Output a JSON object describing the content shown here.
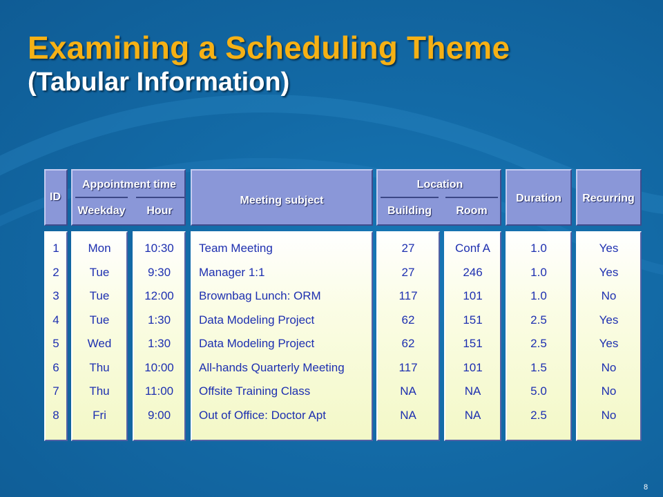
{
  "slide": {
    "title": "Examining a Scheduling Theme",
    "subtitle": "(Tabular Information)",
    "page_number": "8"
  },
  "table": {
    "headers": {
      "id": "ID",
      "appointment_time": "Appointment time",
      "weekday": "Weekday",
      "hour": "Hour",
      "meeting_subject": "Meeting subject",
      "location": "Location",
      "building": "Building",
      "room": "Room",
      "duration": "Duration",
      "recurring": "Recurring"
    },
    "columns": {
      "id": [
        "1",
        "2",
        "3",
        "4",
        "5",
        "6",
        "7",
        "8"
      ],
      "weekday": [
        "Mon",
        "Tue",
        "Tue",
        "Tue",
        "Wed",
        "Thu",
        "Thu",
        "Fri"
      ],
      "hour": [
        "10:30",
        "9:30",
        "12:00",
        "1:30",
        "1:30",
        "10:00",
        "11:00",
        "9:00"
      ],
      "subject": [
        "Team Meeting",
        "Manager 1:1",
        "Brownbag Lunch: ORM",
        "Data Modeling Project",
        "Data Modeling Project",
        "All-hands Quarterly Meeting",
        "Offsite Training Class",
        "Out of Office: Doctor Apt"
      ],
      "building": [
        "27",
        "27",
        "117",
        "62",
        "62",
        "117",
        "NA",
        "NA"
      ],
      "room": [
        "Conf A",
        "246",
        "101",
        "151",
        "151",
        "101",
        "NA",
        "NA"
      ],
      "duration": [
        "1.0",
        "1.0",
        "1.0",
        "2.5",
        "2.5",
        "1.5",
        "5.0",
        "2.5"
      ],
      "recurring": [
        "Yes",
        "Yes",
        "No",
        "Yes",
        "Yes",
        "No",
        "No",
        "No"
      ]
    }
  }
}
